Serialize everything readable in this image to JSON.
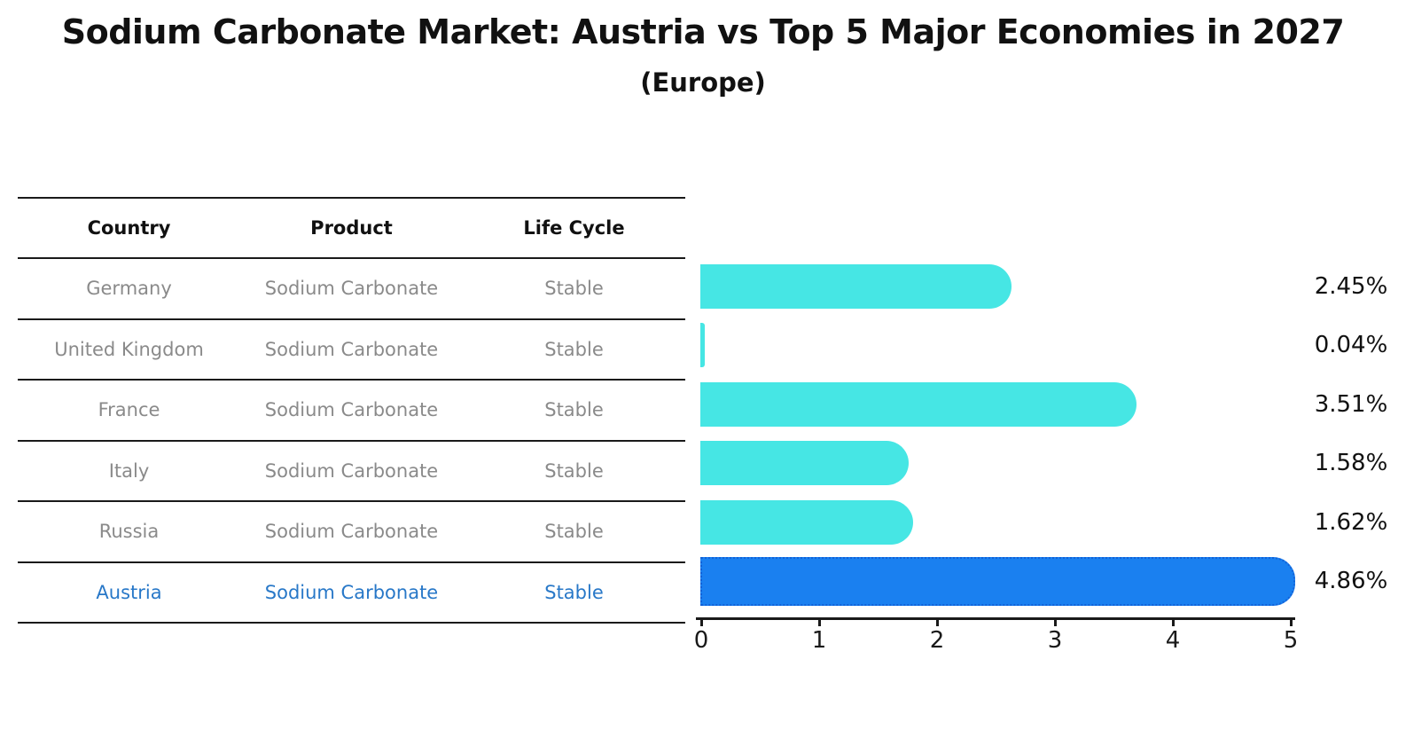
{
  "title": "Sodium Carbonate Market: Austria vs Top 5 Major Economies in 2027",
  "subtitle": "(Europe)",
  "table": {
    "headers": [
      "Country",
      "Product",
      "Life Cycle"
    ],
    "rows": [
      {
        "country": "Germany",
        "product": "Sodium Carbonate",
        "life_cycle": "Stable"
      },
      {
        "country": "United Kingdom",
        "product": "Sodium Carbonate",
        "life_cycle": "Stable"
      },
      {
        "country": "France",
        "product": "Sodium Carbonate",
        "life_cycle": "Stable"
      },
      {
        "country": "Italy",
        "product": "Sodium Carbonate",
        "life_cycle": "Stable"
      },
      {
        "country": "Russia",
        "product": "Sodium Carbonate",
        "life_cycle": "Stable"
      },
      {
        "country": "Austria",
        "product": "Sodium Carbonate",
        "life_cycle": "Stable"
      }
    ]
  },
  "chart_data": {
    "type": "bar",
    "orientation": "horizontal",
    "title": "Sodium Carbonate Market: Austria vs Top 5 Major Economies in 2027",
    "subtitle": "(Europe)",
    "categories": [
      "Germany",
      "United Kingdom",
      "France",
      "Italy",
      "Russia",
      "Austria"
    ],
    "values": [
      2.45,
      0.04,
      3.51,
      1.58,
      1.62,
      4.86
    ],
    "labels": [
      "2.45%",
      "0.04%",
      "3.51%",
      "1.58%",
      "1.62%",
      "4.86%"
    ],
    "xlabel": "",
    "ylabel": "",
    "xlim": [
      0,
      5
    ],
    "xticks": [
      0,
      1,
      2,
      3,
      4,
      5
    ],
    "grid": false,
    "legend": false,
    "highlight_index": 5,
    "bar_color": "#46E6E4",
    "highlight_color": "#1A80F0",
    "highlight_border_color": "#1262D8",
    "highlight_text_color": "#2878c8",
    "row_text_color": "#8a8a8a",
    "value_label_color": "#111111",
    "axis_color": "#1a1a1a"
  }
}
